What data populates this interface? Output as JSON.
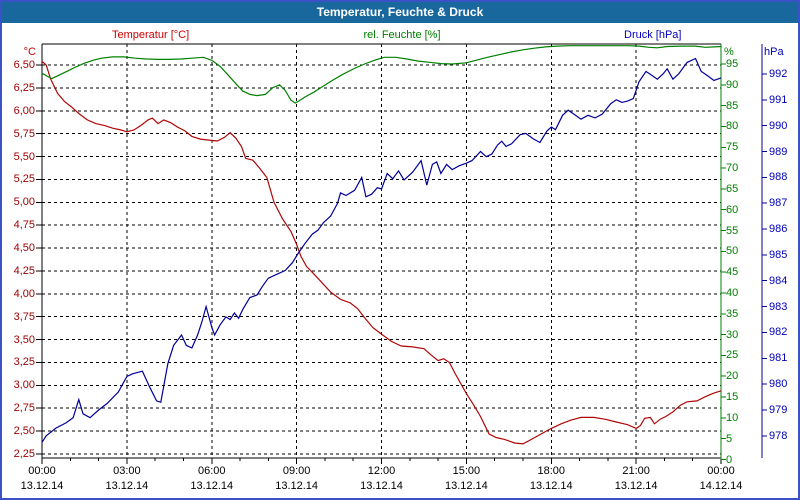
{
  "window": {
    "title": "Temperatur, Feuchte & Druck"
  },
  "legend": {
    "temperature": "Temperatur [°C]",
    "humidity": "rel. Feuchte [%]",
    "pressure": "Druck [hPa]"
  },
  "axes": {
    "temperature_unit": "°C",
    "humidity_unit": "%",
    "pressure_unit": "hPa",
    "temperature_tick_labels": [
      "6,50",
      "6,25",
      "6,00",
      "5,75",
      "5,50",
      "5,25",
      "5,00",
      "4,75",
      "4,50",
      "4,25",
      "4,00",
      "3,75",
      "3,50",
      "3,25",
      "3,00",
      "2,75",
      "2,50",
      "2,25"
    ],
    "humidity_tick_labels": [
      "95",
      "90",
      "85",
      "80",
      "75",
      "70",
      "65",
      "60",
      "55",
      "50",
      "45",
      "40",
      "35",
      "30",
      "25",
      "20",
      "15",
      "10",
      "5",
      "0"
    ],
    "pressure_tick_labels": [
      "992",
      "991",
      "990",
      "989",
      "988",
      "987",
      "986",
      "985",
      "984",
      "983",
      "982",
      "981",
      "980",
      "979",
      "978"
    ],
    "x_ticks": [
      {
        "t": 0,
        "time": "00:00",
        "date": "13.12.14"
      },
      {
        "t": 3,
        "time": "03:00",
        "date": "13.12.14"
      },
      {
        "t": 6,
        "time": "06:00",
        "date": "13.12.14"
      },
      {
        "t": 9,
        "time": "09:00",
        "date": "13.12.14"
      },
      {
        "t": 12,
        "time": "12:00",
        "date": "13.12.14"
      },
      {
        "t": 15,
        "time": "15:00",
        "date": "13.12.14"
      },
      {
        "t": 18,
        "time": "18:00",
        "date": "13.12.14"
      },
      {
        "t": 21,
        "time": "21:00",
        "date": "13.12.14"
      },
      {
        "t": 24,
        "time": "00:00",
        "date": "14.12.14"
      }
    ]
  },
  "colors": {
    "frame": "#3a52c6",
    "title_bar": "#19689d",
    "temperature": "#b00606",
    "temperature_text": "#9b0000",
    "humidity": "#008000",
    "pressure": "#000099",
    "pressure_text": "#0000bb",
    "grid": "#000000",
    "x_text": "#000000"
  },
  "chart_data": {
    "type": "line",
    "title": "Temperatur, Feuchte & Druck",
    "x_axis": {
      "unit": "hours",
      "min": 0,
      "max": 24,
      "major_step": 3,
      "minor_step": 1,
      "start_label": "00:00 13.12.14",
      "end_label": "00:00 14.12.14"
    },
    "y_axes": {
      "temperature": {
        "unit": "°C",
        "top_tick": 6.5,
        "bottom_tick": 2.25,
        "step": 0.25
      },
      "humidity": {
        "unit": "%",
        "top_tick": 95,
        "bottom_tick": 0,
        "step": 5
      },
      "pressure": {
        "unit": "hPa",
        "top_tick": 992,
        "bottom_tick": 978,
        "step": 1
      }
    },
    "grid": {
      "horizontal": "dashed",
      "vertical": "dashed"
    },
    "series": [
      {
        "name": "Temperatur",
        "axis": "temperature",
        "unit": "°C",
        "color_key": "temperature",
        "points": [
          [
            0,
            6.54
          ],
          [
            0.15,
            6.5
          ],
          [
            0.3,
            6.35
          ],
          [
            0.55,
            6.19
          ],
          [
            0.8,
            6.1
          ],
          [
            1.05,
            6.04
          ],
          [
            1.3,
            5.97
          ],
          [
            1.6,
            5.9
          ],
          [
            1.9,
            5.86
          ],
          [
            2.2,
            5.84
          ],
          [
            2.5,
            5.81
          ],
          [
            2.8,
            5.79
          ],
          [
            3.0,
            5.77
          ],
          [
            3.25,
            5.79
          ],
          [
            3.5,
            5.84
          ],
          [
            3.75,
            5.9
          ],
          [
            3.9,
            5.92
          ],
          [
            4.1,
            5.86
          ],
          [
            4.3,
            5.9
          ],
          [
            4.55,
            5.87
          ],
          [
            4.8,
            5.82
          ],
          [
            5.05,
            5.78
          ],
          [
            5.3,
            5.72
          ],
          [
            5.6,
            5.69
          ],
          [
            5.9,
            5.68
          ],
          [
            6.2,
            5.67
          ],
          [
            6.45,
            5.71
          ],
          [
            6.65,
            5.76
          ],
          [
            6.85,
            5.7
          ],
          [
            7.05,
            5.61
          ],
          [
            7.2,
            5.48
          ],
          [
            7.45,
            5.46
          ],
          [
            7.7,
            5.37
          ],
          [
            7.95,
            5.27
          ],
          [
            8.2,
            5.0
          ],
          [
            8.5,
            4.82
          ],
          [
            8.8,
            4.68
          ],
          [
            9.0,
            4.54
          ],
          [
            9.15,
            4.41
          ],
          [
            9.35,
            4.3
          ],
          [
            9.6,
            4.22
          ],
          [
            9.9,
            4.12
          ],
          [
            10.2,
            4.02
          ],
          [
            10.55,
            3.94
          ],
          [
            10.9,
            3.9
          ],
          [
            11.15,
            3.84
          ],
          [
            11.4,
            3.74
          ],
          [
            11.7,
            3.63
          ],
          [
            12.0,
            3.56
          ],
          [
            12.35,
            3.48
          ],
          [
            12.7,
            3.43
          ],
          [
            13.1,
            3.42
          ],
          [
            13.5,
            3.4
          ],
          [
            13.8,
            3.32
          ],
          [
            14.0,
            3.27
          ],
          [
            14.2,
            3.29
          ],
          [
            14.4,
            3.25
          ],
          [
            14.6,
            3.13
          ],
          [
            14.8,
            3.02
          ],
          [
            15.0,
            2.91
          ],
          [
            15.25,
            2.79
          ],
          [
            15.5,
            2.66
          ],
          [
            15.8,
            2.47
          ],
          [
            16.05,
            2.43
          ],
          [
            16.35,
            2.41
          ],
          [
            16.7,
            2.37
          ],
          [
            17.0,
            2.36
          ],
          [
            17.3,
            2.41
          ],
          [
            17.65,
            2.47
          ],
          [
            18.0,
            2.53
          ],
          [
            18.35,
            2.58
          ],
          [
            18.7,
            2.62
          ],
          [
            19.05,
            2.65
          ],
          [
            19.5,
            2.65
          ],
          [
            19.9,
            2.63
          ],
          [
            20.3,
            2.6
          ],
          [
            20.7,
            2.57
          ],
          [
            21.0,
            2.53
          ],
          [
            21.15,
            2.56
          ],
          [
            21.3,
            2.64
          ],
          [
            21.5,
            2.65
          ],
          [
            21.65,
            2.58
          ],
          [
            21.85,
            2.63
          ],
          [
            22.05,
            2.66
          ],
          [
            22.3,
            2.71
          ],
          [
            22.55,
            2.78
          ],
          [
            22.8,
            2.82
          ],
          [
            23.15,
            2.83
          ],
          [
            23.4,
            2.87
          ],
          [
            23.7,
            2.91
          ],
          [
            24,
            2.94
          ]
        ]
      },
      {
        "name": "rel. Feuchte",
        "axis": "humidity",
        "unit": "%",
        "color_key": "humidity",
        "points": [
          [
            0,
            92.8
          ],
          [
            0.2,
            92.0
          ],
          [
            0.35,
            91.5
          ],
          [
            0.6,
            92.3
          ],
          [
            0.9,
            93.3
          ],
          [
            1.2,
            94.3
          ],
          [
            1.5,
            95.2
          ],
          [
            1.8,
            95.9
          ],
          [
            2.1,
            96.4
          ],
          [
            2.5,
            96.7
          ],
          [
            2.9,
            96.7
          ],
          [
            3.3,
            96.4
          ],
          [
            3.7,
            96.2
          ],
          [
            4.1,
            96.1
          ],
          [
            4.5,
            96.1
          ],
          [
            4.9,
            96.2
          ],
          [
            5.3,
            96.4
          ],
          [
            5.7,
            96.6
          ],
          [
            6.0,
            95.9
          ],
          [
            6.3,
            94.4
          ],
          [
            6.6,
            92.2
          ],
          [
            6.9,
            89.9
          ],
          [
            7.1,
            88.5
          ],
          [
            7.35,
            87.7
          ],
          [
            7.6,
            87.4
          ],
          [
            7.9,
            87.7
          ],
          [
            8.15,
            89.3
          ],
          [
            8.4,
            90.0
          ],
          [
            8.6,
            88.6
          ],
          [
            8.8,
            86.3
          ],
          [
            8.95,
            85.6
          ],
          [
            9.1,
            86.2
          ],
          [
            9.3,
            87.1
          ],
          [
            9.6,
            88.2
          ],
          [
            9.9,
            89.5
          ],
          [
            10.2,
            90.8
          ],
          [
            10.6,
            92.4
          ],
          [
            11.0,
            93.8
          ],
          [
            11.4,
            95.0
          ],
          [
            11.8,
            96.0
          ],
          [
            12.1,
            96.6
          ],
          [
            12.5,
            96.6
          ],
          [
            12.9,
            96.2
          ],
          [
            13.3,
            95.7
          ],
          [
            13.7,
            95.4
          ],
          [
            14.1,
            95.1
          ],
          [
            14.5,
            95.0
          ],
          [
            15.0,
            95.3
          ],
          [
            15.4,
            96.0
          ],
          [
            15.8,
            96.7
          ],
          [
            16.2,
            97.3
          ],
          [
            16.6,
            97.9
          ],
          [
            17.0,
            98.4
          ],
          [
            17.4,
            98.8
          ],
          [
            17.8,
            99.1
          ],
          [
            18.2,
            99.3
          ],
          [
            18.7,
            99.4
          ],
          [
            19.2,
            99.4
          ],
          [
            19.7,
            99.4
          ],
          [
            20.2,
            99.4
          ],
          [
            20.7,
            99.4
          ],
          [
            21.1,
            99.3
          ],
          [
            21.45,
            99.0
          ],
          [
            21.75,
            98.9
          ],
          [
            22.1,
            99.2
          ],
          [
            22.6,
            99.3
          ],
          [
            23.1,
            99.3
          ],
          [
            23.45,
            99.0
          ],
          [
            23.75,
            99.1
          ],
          [
            24,
            99.2
          ]
        ]
      },
      {
        "name": "Druck",
        "axis": "pressure",
        "unit": "hPa",
        "color_key": "pressure",
        "points": [
          [
            0,
            977.75
          ],
          [
            0.15,
            978.0
          ],
          [
            0.5,
            978.3
          ],
          [
            0.85,
            978.5
          ],
          [
            1.1,
            978.7
          ],
          [
            1.3,
            979.4
          ],
          [
            1.45,
            978.85
          ],
          [
            1.7,
            978.7
          ],
          [
            2.0,
            979.0
          ],
          [
            2.3,
            979.25
          ],
          [
            2.7,
            979.7
          ],
          [
            3.0,
            980.3
          ],
          [
            3.2,
            980.4
          ],
          [
            3.55,
            980.5
          ],
          [
            3.8,
            979.9
          ],
          [
            4.05,
            979.35
          ],
          [
            4.2,
            979.3
          ],
          [
            4.45,
            980.8
          ],
          [
            4.65,
            981.5
          ],
          [
            4.93,
            981.9
          ],
          [
            5.1,
            981.5
          ],
          [
            5.3,
            981.4
          ],
          [
            5.5,
            981.9
          ],
          [
            5.65,
            982.4
          ],
          [
            5.8,
            983.0
          ],
          [
            6.0,
            982.2
          ],
          [
            6.1,
            981.9
          ],
          [
            6.3,
            982.3
          ],
          [
            6.5,
            982.6
          ],
          [
            6.65,
            982.5
          ],
          [
            6.8,
            982.75
          ],
          [
            6.95,
            982.55
          ],
          [
            7.1,
            982.9
          ],
          [
            7.35,
            983.35
          ],
          [
            7.6,
            983.45
          ],
          [
            7.8,
            983.8
          ],
          [
            8.0,
            984.1
          ],
          [
            8.3,
            984.25
          ],
          [
            8.6,
            984.4
          ],
          [
            8.85,
            984.7
          ],
          [
            9.05,
            985.05
          ],
          [
            9.3,
            985.45
          ],
          [
            9.55,
            985.8
          ],
          [
            9.75,
            985.95
          ],
          [
            9.95,
            986.25
          ],
          [
            10.2,
            986.5
          ],
          [
            10.45,
            987.0
          ],
          [
            10.55,
            987.4
          ],
          [
            10.75,
            987.3
          ],
          [
            11.05,
            987.5
          ],
          [
            11.3,
            988.0
          ],
          [
            11.45,
            987.25
          ],
          [
            11.65,
            987.35
          ],
          [
            11.85,
            987.6
          ],
          [
            12.0,
            987.55
          ],
          [
            12.2,
            988.15
          ],
          [
            12.4,
            987.95
          ],
          [
            12.6,
            988.25
          ],
          [
            12.8,
            987.9
          ],
          [
            13.1,
            988.2
          ],
          [
            13.4,
            988.65
          ],
          [
            13.6,
            987.7
          ],
          [
            13.8,
            988.5
          ],
          [
            13.95,
            988.6
          ],
          [
            14.1,
            988.15
          ],
          [
            14.3,
            988.5
          ],
          [
            14.5,
            988.3
          ],
          [
            14.75,
            988.45
          ],
          [
            15.0,
            988.55
          ],
          [
            15.2,
            988.65
          ],
          [
            15.5,
            989.0
          ],
          [
            15.7,
            988.8
          ],
          [
            15.9,
            988.9
          ],
          [
            16.1,
            989.25
          ],
          [
            16.25,
            989.4
          ],
          [
            16.4,
            989.2
          ],
          [
            16.6,
            989.3
          ],
          [
            16.9,
            989.65
          ],
          [
            17.1,
            989.7
          ],
          [
            17.35,
            989.5
          ],
          [
            17.6,
            989.35
          ],
          [
            17.85,
            989.8
          ],
          [
            18.0,
            989.95
          ],
          [
            18.15,
            989.85
          ],
          [
            18.4,
            990.4
          ],
          [
            18.6,
            990.6
          ],
          [
            18.8,
            990.45
          ],
          [
            19.05,
            990.25
          ],
          [
            19.3,
            990.4
          ],
          [
            19.55,
            990.3
          ],
          [
            19.8,
            990.45
          ],
          [
            20.1,
            990.85
          ],
          [
            20.3,
            991.0
          ],
          [
            20.5,
            990.9
          ],
          [
            20.7,
            990.95
          ],
          [
            20.9,
            991.05
          ],
          [
            21.1,
            991.7
          ],
          [
            21.35,
            992.1
          ],
          [
            21.55,
            991.95
          ],
          [
            21.75,
            991.8
          ],
          [
            21.95,
            992.0
          ],
          [
            22.1,
            992.2
          ],
          [
            22.3,
            991.8
          ],
          [
            22.5,
            992.0
          ],
          [
            22.8,
            992.45
          ],
          [
            23.1,
            992.6
          ],
          [
            23.3,
            992.1
          ],
          [
            23.5,
            991.95
          ],
          [
            23.75,
            991.75
          ],
          [
            24,
            991.85
          ]
        ]
      }
    ]
  }
}
